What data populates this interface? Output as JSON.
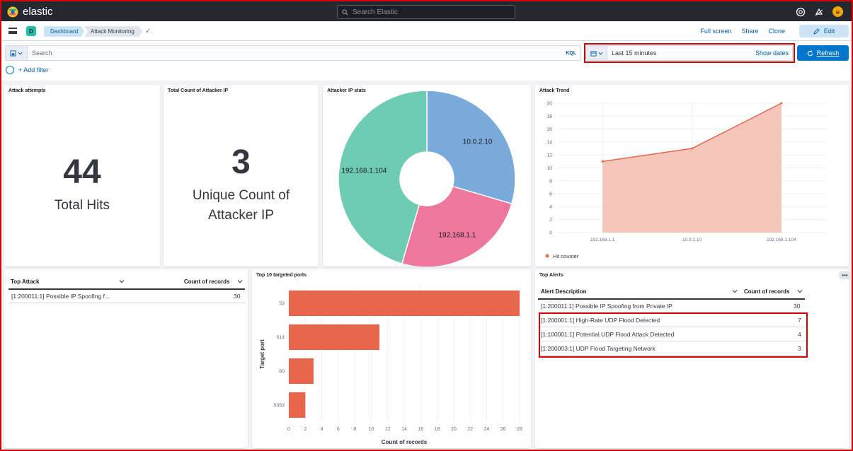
{
  "app": {
    "brand": "elastic",
    "search_placeholder": "Search Elastic",
    "avatar_letter": "e"
  },
  "subbar": {
    "space_letter": "D",
    "breadcrumbs": [
      "Dashboard",
      "Attack Monitoring"
    ],
    "actions": [
      "Full screen",
      "Share",
      "Clone"
    ],
    "edit_label": "Edit"
  },
  "query": {
    "placeholder": "Search",
    "language": "KQL"
  },
  "time": {
    "range": "Last 15 minutes",
    "show_dates": "Show dates",
    "refresh": "Refresh"
  },
  "filter": {
    "add_label": "+ Add filter"
  },
  "colors": {
    "accent": "#0077cc",
    "bar": "#e7664c",
    "area": "#f3b9a9",
    "highlight": "#d40000"
  },
  "panels": {
    "attack_attempts": {
      "title": "Attack attempts",
      "value": "44",
      "label": "Total Hits"
    },
    "unique_ip": {
      "title": "Total Count of Attacker IP",
      "value": "3",
      "label_line1": "Unique Count of",
      "label_line2": "Attacker IP"
    },
    "ip_stats": {
      "title": "Attacker IP stats"
    },
    "trend": {
      "title": "Attack Trend"
    },
    "top_attack": {
      "col1": "Top Attack",
      "col2": "Count of records",
      "rows": [
        {
          "desc": "[1:200011:1] Possible IP Spoofing f...",
          "count": "30"
        }
      ]
    },
    "ports": {
      "title": "Top 10 targeted ports"
    },
    "top_alerts": {
      "title": "Top Alerts",
      "col1": "Alert Description",
      "col2": "Count of records",
      "rows": [
        {
          "desc": "[1:200011:1] Possible IP Spoofing from Private IP",
          "count": "30"
        },
        {
          "desc": "[1:200001:1] High-Rate UDP Flood Detected",
          "count": "7"
        },
        {
          "desc": "[1:100001:1] Potential UDP Flood Attack Detected",
          "count": "4"
        },
        {
          "desc": "[1:200003:1] UDP Flood Targeting Network",
          "count": "3"
        }
      ]
    }
  },
  "chart_data": [
    {
      "type": "pie",
      "title": "Attacker IP stats",
      "donut": true,
      "categories": [
        "10.0.2.10",
        "192.168.1.1",
        "192.168.1.104"
      ],
      "values": [
        13,
        11,
        20
      ],
      "colors": [
        "#79aad9",
        "#ee789d",
        "#6dccb1"
      ]
    },
    {
      "type": "area",
      "title": "Attack Trend",
      "categories": [
        "192.168.1.1",
        "10.0.2.10",
        "192.168.1.104"
      ],
      "series": [
        {
          "name": "Hit counter",
          "values": [
            11,
            13,
            20
          ]
        }
      ],
      "yticks": [
        "0",
        "2",
        "4",
        "6",
        "8",
        "10",
        "12",
        "14",
        "16",
        "18",
        "20"
      ],
      "ylim": [
        0,
        20
      ],
      "legend": "bottom-left"
    },
    {
      "type": "bar",
      "orientation": "horizontal",
      "title": "Top 10 targeted ports",
      "categories": [
        "53",
        "514",
        "80",
        "5353"
      ],
      "values": [
        28,
        11,
        3,
        2
      ],
      "xlabel": "Count of records",
      "ylabel": "Target port",
      "xticks": [
        "0",
        "2",
        "4",
        "6",
        "8",
        "10",
        "12",
        "14",
        "16",
        "18",
        "20",
        "22",
        "24",
        "26",
        "28"
      ],
      "xlim": [
        0,
        28
      ]
    }
  ]
}
